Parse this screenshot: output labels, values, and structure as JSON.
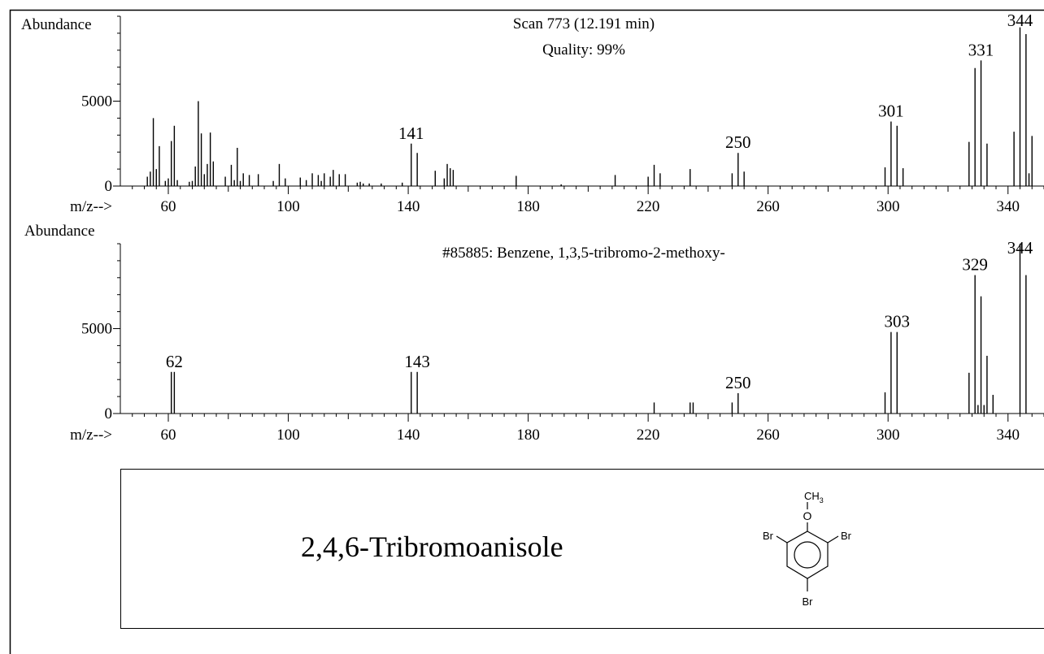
{
  "chart_data": [
    {
      "type": "bar",
      "title": "Scan 773 (12.191 min)",
      "subtitle": "Quality: 99%",
      "ylabel": "Abundance",
      "xlabel": "m/z-->",
      "xlim": [
        44,
        352
      ],
      "ylim": [
        0,
        10000
      ],
      "xticks": [
        60,
        100,
        140,
        180,
        220,
        260,
        300,
        340
      ],
      "yticks": [
        0,
        5000
      ],
      "grid": false,
      "legend": "none",
      "peaks": [
        {
          "mz": 53,
          "y": 550
        },
        {
          "mz": 54,
          "y": 850
        },
        {
          "mz": 55,
          "y": 4000
        },
        {
          "mz": 56,
          "y": 1000
        },
        {
          "mz": 57,
          "y": 2350
        },
        {
          "mz": 59,
          "y": 300
        },
        {
          "mz": 60,
          "y": 450
        },
        {
          "mz": 61,
          "y": 2650
        },
        {
          "mz": 62,
          "y": 3550
        },
        {
          "mz": 63,
          "y": 350
        },
        {
          "mz": 67,
          "y": 250
        },
        {
          "mz": 68,
          "y": 300
        },
        {
          "mz": 69,
          "y": 1150
        },
        {
          "mz": 70,
          "y": 5000
        },
        {
          "mz": 71,
          "y": 3100
        },
        {
          "mz": 72,
          "y": 700
        },
        {
          "mz": 73,
          "y": 1300
        },
        {
          "mz": 74,
          "y": 3150
        },
        {
          "mz": 75,
          "y": 1450
        },
        {
          "mz": 79,
          "y": 550
        },
        {
          "mz": 81,
          "y": 1250
        },
        {
          "mz": 82,
          "y": 350
        },
        {
          "mz": 83,
          "y": 2250
        },
        {
          "mz": 84,
          "y": 300
        },
        {
          "mz": 85,
          "y": 750
        },
        {
          "mz": 87,
          "y": 650
        },
        {
          "mz": 90,
          "y": 700
        },
        {
          "mz": 95,
          "y": 300
        },
        {
          "mz": 97,
          "y": 1300
        },
        {
          "mz": 99,
          "y": 450
        },
        {
          "mz": 104,
          "y": 500
        },
        {
          "mz": 106,
          "y": 350
        },
        {
          "mz": 108,
          "y": 750
        },
        {
          "mz": 110,
          "y": 650
        },
        {
          "mz": 111,
          "y": 300
        },
        {
          "mz": 112,
          "y": 750
        },
        {
          "mz": 114,
          "y": 550
        },
        {
          "mz": 115,
          "y": 950
        },
        {
          "mz": 117,
          "y": 700
        },
        {
          "mz": 119,
          "y": 700
        },
        {
          "mz": 123,
          "y": 200
        },
        {
          "mz": 124,
          "y": 250
        },
        {
          "mz": 125,
          "y": 150
        },
        {
          "mz": 127,
          "y": 150
        },
        {
          "mz": 131,
          "y": 150
        },
        {
          "mz": 138,
          "y": 200
        },
        {
          "mz": 141,
          "y": 2500
        },
        {
          "mz": 143,
          "y": 1950
        },
        {
          "mz": 149,
          "y": 900
        },
        {
          "mz": 152,
          "y": 450
        },
        {
          "mz": 153,
          "y": 1300
        },
        {
          "mz": 154,
          "y": 1050
        },
        {
          "mz": 155,
          "y": 950
        },
        {
          "mz": 176,
          "y": 600
        },
        {
          "mz": 191,
          "y": 100
        },
        {
          "mz": 209,
          "y": 650
        },
        {
          "mz": 220,
          "y": 550
        },
        {
          "mz": 222,
          "y": 1250
        },
        {
          "mz": 224,
          "y": 750
        },
        {
          "mz": 234,
          "y": 1000
        },
        {
          "mz": 248,
          "y": 750
        },
        {
          "mz": 250,
          "y": 1950
        },
        {
          "mz": 252,
          "y": 850
        },
        {
          "mz": 299,
          "y": 1100
        },
        {
          "mz": 301,
          "y": 3800
        },
        {
          "mz": 303,
          "y": 3550
        },
        {
          "mz": 305,
          "y": 1050
        },
        {
          "mz": 327,
          "y": 2600
        },
        {
          "mz": 329,
          "y": 6950
        },
        {
          "mz": 331,
          "y": 7400
        },
        {
          "mz": 333,
          "y": 2500
        },
        {
          "mz": 342,
          "y": 3200
        },
        {
          "mz": 344,
          "y": 9350
        },
        {
          "mz": 346,
          "y": 8950
        },
        {
          "mz": 347,
          "y": 750
        },
        {
          "mz": 348,
          "y": 2950
        }
      ],
      "peak_labels": [
        {
          "mz": 141,
          "y": 2500,
          "text": "141"
        },
        {
          "mz": 250,
          "y": 1950,
          "text": "250"
        },
        {
          "mz": 301,
          "y": 3800,
          "text": "301"
        },
        {
          "mz": 331,
          "y": 7400,
          "text": "331"
        },
        {
          "mz": 344,
          "y": 9350,
          "text": "344"
        }
      ]
    },
    {
      "type": "bar",
      "title": "#85885: Benzene, 1,3,5-tribromo-2-methoxy-",
      "ylabel": "Abundance",
      "xlabel": "m/z-->",
      "xlim": [
        44,
        352
      ],
      "ylim": [
        0,
        10000
      ],
      "xticks": [
        60,
        100,
        140,
        180,
        220,
        260,
        300,
        340
      ],
      "yticks": [
        0,
        5000
      ],
      "grid": false,
      "legend": "none",
      "peaks": [
        {
          "mz": 61,
          "y": 2450
        },
        {
          "mz": 62,
          "y": 2450
        },
        {
          "mz": 141,
          "y": 2450
        },
        {
          "mz": 143,
          "y": 2450
        },
        {
          "mz": 222,
          "y": 650
        },
        {
          "mz": 234,
          "y": 650
        },
        {
          "mz": 235,
          "y": 650
        },
        {
          "mz": 248,
          "y": 650
        },
        {
          "mz": 250,
          "y": 1200
        },
        {
          "mz": 299,
          "y": 1250
        },
        {
          "mz": 301,
          "y": 4800
        },
        {
          "mz": 303,
          "y": 4800
        },
        {
          "mz": 327,
          "y": 2400
        },
        {
          "mz": 329,
          "y": 8150
        },
        {
          "mz": 330,
          "y": 500
        },
        {
          "mz": 331,
          "y": 6900
        },
        {
          "mz": 332,
          "y": 500
        },
        {
          "mz": 333,
          "y": 3400
        },
        {
          "mz": 335,
          "y": 1100
        },
        {
          "mz": 344,
          "y": 10000
        },
        {
          "mz": 346,
          "y": 8150
        }
      ],
      "peak_labels": [
        {
          "mz": 62,
          "y": 2450,
          "text": "62"
        },
        {
          "mz": 143,
          "y": 2450,
          "text": "143"
        },
        {
          "mz": 250,
          "y": 1200,
          "text": "250"
        },
        {
          "mz": 303,
          "y": 4800,
          "text": "303"
        },
        {
          "mz": 329,
          "y": 8150,
          "text": "329"
        },
        {
          "mz": 344,
          "y": 10000,
          "text": "344"
        }
      ]
    }
  ],
  "compound": {
    "name": "2,4,6-Tribromoanisole",
    "structure_labels": {
      "methyl": "CH",
      "methyl_sub": "3",
      "oxygen": "O",
      "br_left": "Br",
      "br_right": "Br",
      "br_bottom": "Br"
    }
  }
}
